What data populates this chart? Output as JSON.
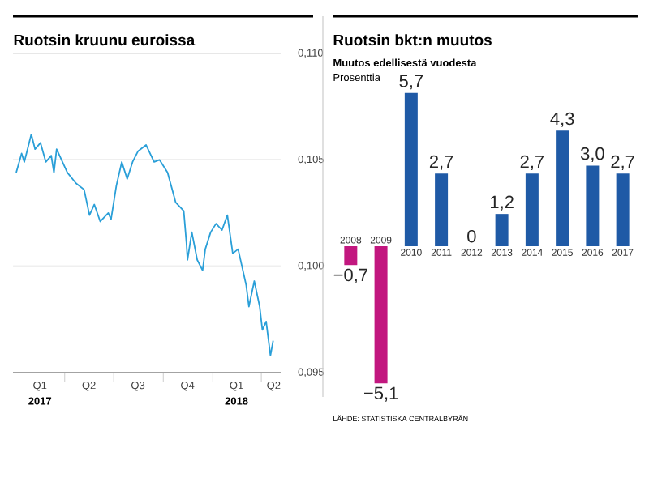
{
  "chart_data": [
    {
      "type": "line",
      "title": "Ruotsin kruunu euroissa",
      "x": [
        "2017-01-01",
        "2017-01-11",
        "2017-01-16",
        "2017-01-29",
        "2017-02-05",
        "2017-02-15",
        "2017-02-25",
        "2017-03-07",
        "2017-03-12",
        "2017-03-17",
        "2017-04-06",
        "2017-04-22",
        "2017-05-07",
        "2017-05-17",
        "2017-05-26",
        "2017-06-06",
        "2017-06-21",
        "2017-06-26",
        "2017-07-06",
        "2017-07-16",
        "2017-07-26",
        "2017-08-05",
        "2017-08-15",
        "2017-08-30",
        "2017-09-14",
        "2017-09-24",
        "2017-10-09",
        "2017-10-24",
        "2017-11-08",
        "2017-11-13",
        "2017-11-15",
        "2017-11-23",
        "2017-12-03",
        "2017-12-13",
        "2017-12-18",
        "2017-12-28",
        "2018-01-07",
        "2018-01-18",
        "2018-01-28",
        "2018-02-07",
        "2018-02-17",
        "2018-03-04",
        "2018-03-09",
        "2018-03-19",
        "2018-03-29",
        "2018-04-03",
        "2018-04-10",
        "2018-04-18",
        "2018-04-23"
      ],
      "values": [
        0.1044,
        0.1053,
        0.1049,
        0.1062,
        0.1055,
        0.1058,
        0.1049,
        0.1052,
        0.1044,
        0.1055,
        0.1044,
        0.1039,
        0.1036,
        0.1024,
        0.1029,
        0.1021,
        0.1025,
        0.1022,
        0.1038,
        0.1049,
        0.1041,
        0.1049,
        0.1054,
        0.1057,
        0.1049,
        0.105,
        0.1044,
        0.103,
        0.1026,
        0.1011,
        0.1003,
        0.1016,
        0.1003,
        0.0998,
        0.1008,
        0.1016,
        0.102,
        0.1017,
        0.1024,
        0.1006,
        0.1008,
        0.0991,
        0.0981,
        0.0993,
        0.0981,
        0.097,
        0.0974,
        0.0958,
        0.0965
      ],
      "color": "#2a9fd8",
      "xlim": [
        "2016-12-26",
        "2018-05-07"
      ],
      "xticks": [
        {
          "value": "2017-02-14",
          "label": "Q1"
        },
        {
          "value": "2017-05-16",
          "label": "Q2"
        },
        {
          "value": "2017-08-15",
          "label": "Q3"
        },
        {
          "value": "2017-11-15",
          "label": "Q4"
        },
        {
          "value": "2018-02-14",
          "label": "Q1"
        },
        {
          "value": "2018-04-24",
          "label": "Q2"
        },
        {
          "value": "2017-04-01",
          "label": null
        },
        {
          "value": "2017-07-01",
          "label": null
        },
        {
          "value": "2017-10-01",
          "label": null
        },
        {
          "value": "2018-01-01",
          "label": null
        },
        {
          "value": "2018-04-01",
          "label": null
        }
      ],
      "ylim": [
        0.095,
        0.11
      ],
      "yticks": [
        {
          "value": 0.095,
          "label": "0,095"
        },
        {
          "value": 0.1,
          "label": "0,100"
        },
        {
          "value": 0.105,
          "label": "0,105"
        },
        {
          "value": 0.11,
          "label": "0,110"
        }
      ],
      "grid": "y",
      "annotations": [
        "2017",
        "2018"
      ]
    },
    {
      "type": "bar",
      "title": "Ruotsin bkt:n muutos",
      "subtitle": "Muutos edellisestä vuodesta",
      "ylabel": "Prosenttia",
      "categories": [
        "2008",
        "2009",
        "2010",
        "2011",
        "2012",
        "2013",
        "2014",
        "2015",
        "2016",
        "2017"
      ],
      "values": [
        -0.7,
        -5.1,
        5.7,
        2.7,
        0,
        1.2,
        2.7,
        4.3,
        3.0,
        2.7
      ],
      "colors": [
        "#c2177f",
        "#c2177f",
        "#1f5aa6",
        "#1f5aa6",
        "#1f5aa6",
        "#1f5aa6",
        "#1f5aa6",
        "#1f5aa6",
        "#1f5aa6",
        "#1f5aa6"
      ],
      "value_labels": [
        "−0,7",
        "−5,1",
        "5,7",
        "2,7",
        "0",
        "1,2",
        "2,7",
        "4,3",
        "3,0",
        "2,7"
      ],
      "annotations": [
        "LÄHDE: STATISTISKA CENTRALBYRÅN"
      ]
    }
  ]
}
